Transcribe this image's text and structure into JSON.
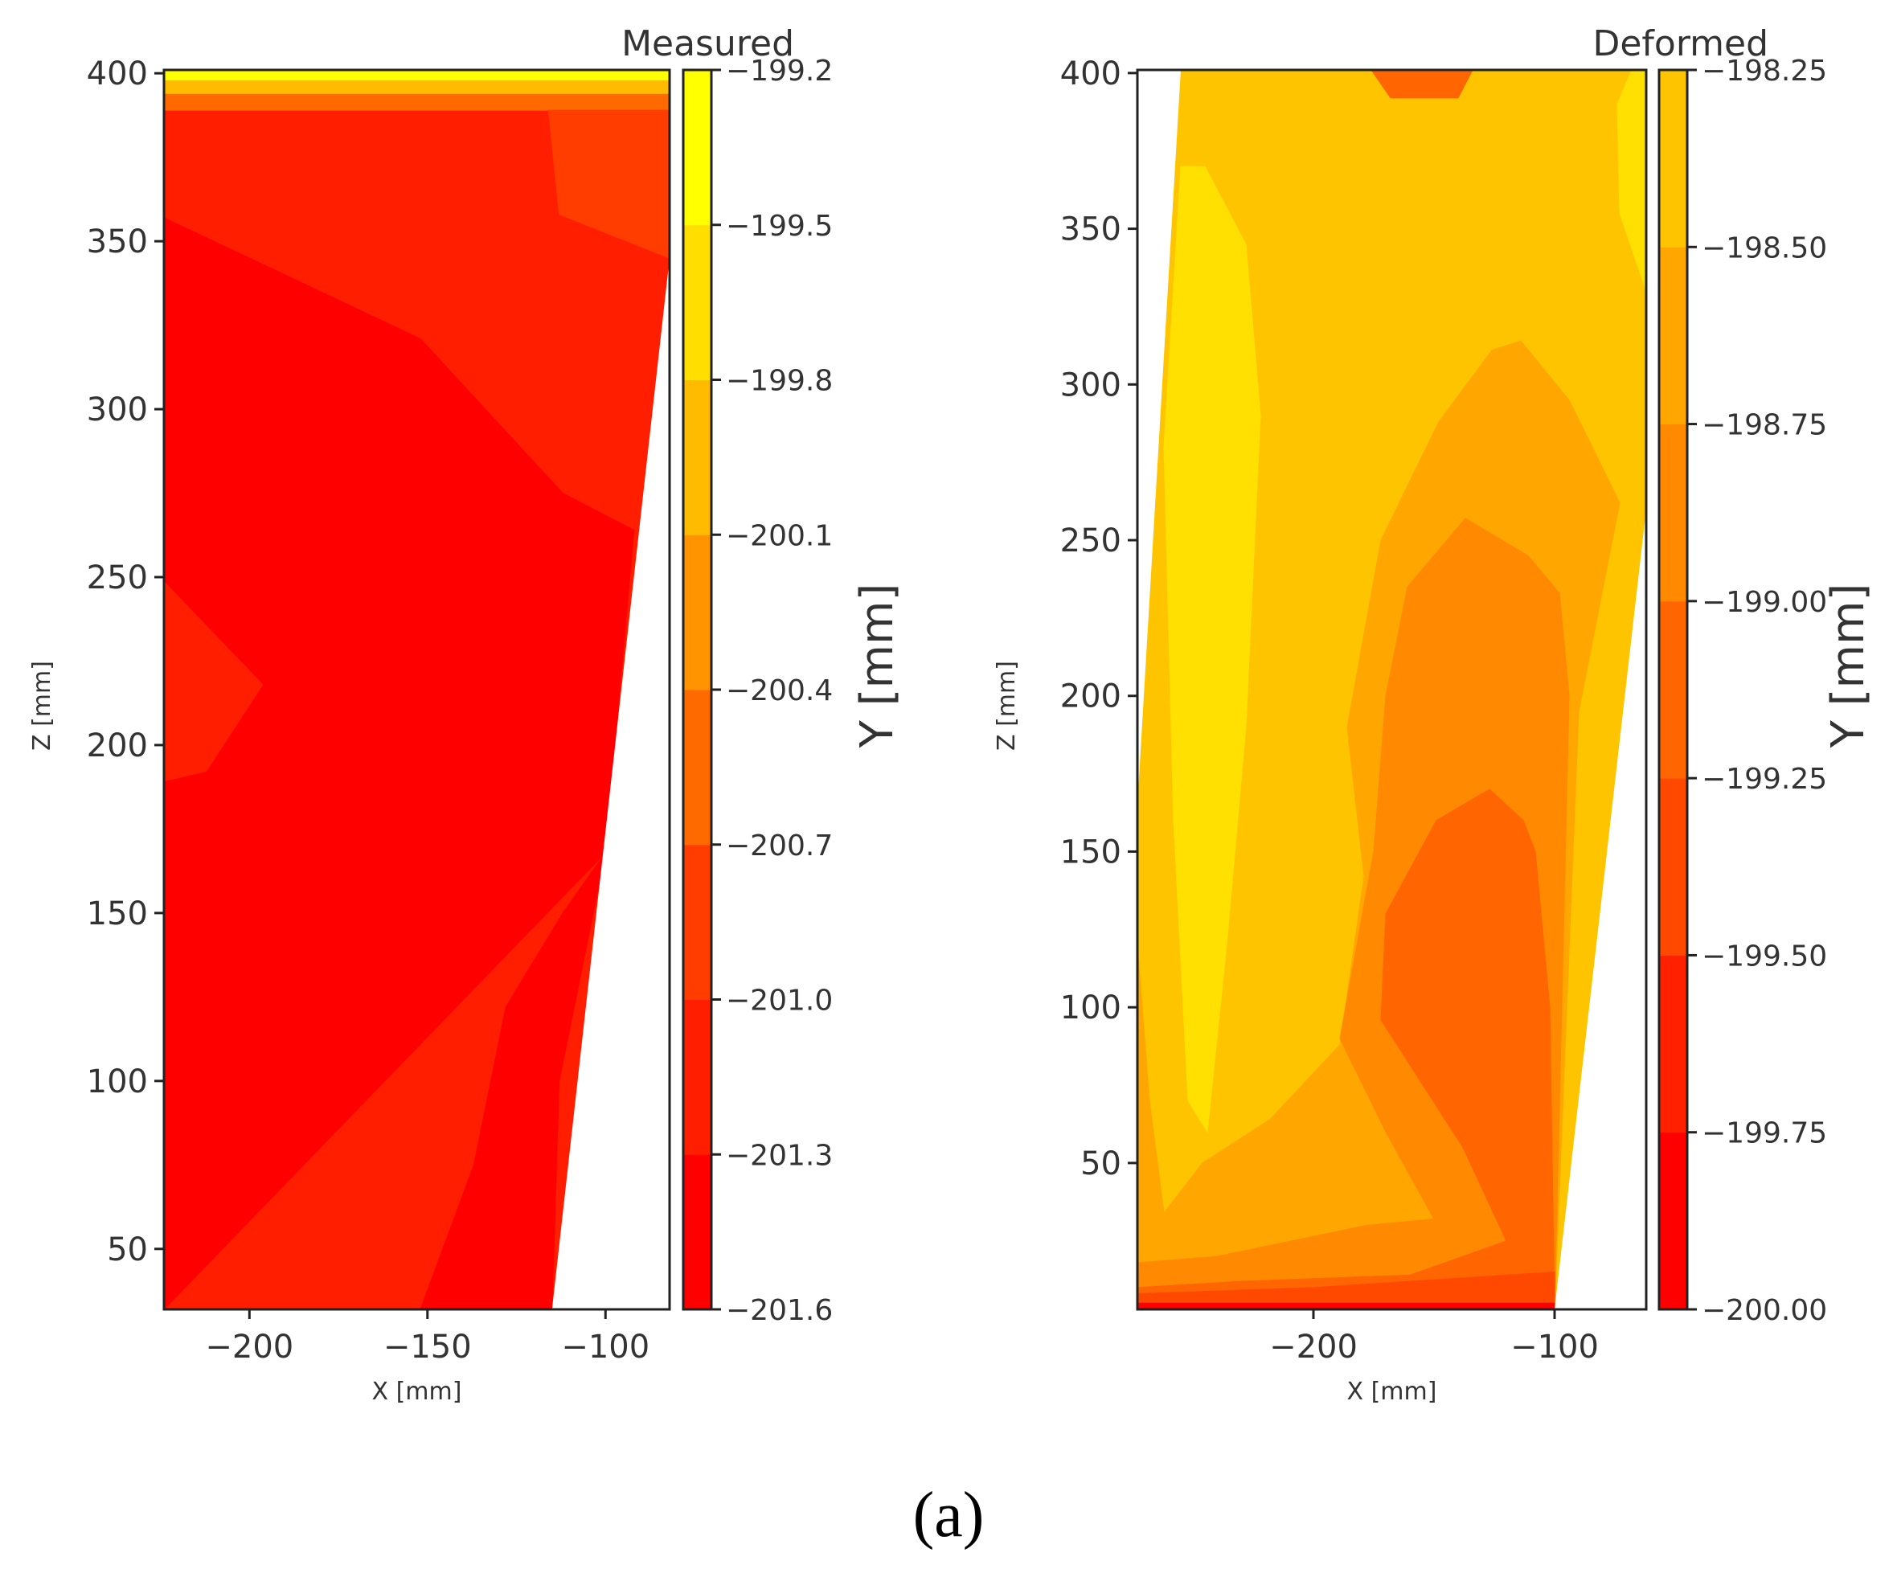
{
  "caption": "(a)",
  "palette": {
    "measured": [
      "#ff0000",
      "#ff1f00",
      "#ff3d00",
      "#ff6a00",
      "#ff9300",
      "#ffbb00",
      "#ffde00",
      "#ffff00"
    ],
    "deformed": [
      "#ff0000",
      "#ff2000",
      "#ff4800",
      "#ff6500",
      "#ff8900",
      "#ffa600",
      "#ffc400",
      "#ffe000"
    ],
    "axis": "#222222",
    "text": "#333333"
  },
  "chart_data": [
    {
      "type": "heatmap",
      "title": "Measured",
      "xlabel": "X [mm]",
      "ylabel": "Z [mm]",
      "colorbar_label": "Y [mm]",
      "xlim": [
        -224,
        -82
      ],
      "ylim": [
        32,
        401
      ],
      "xticks": [
        -200,
        -150,
        -100
      ],
      "xtick_labels": [
        "−200",
        "−150",
        "−100"
      ],
      "yticks": [
        50,
        100,
        150,
        200,
        250,
        300,
        350,
        400
      ],
      "ytick_labels": [
        "50",
        "100",
        "150",
        "200",
        "250",
        "300",
        "350",
        "400"
      ],
      "colorbar_ticks": [
        -201.6,
        -201.3,
        -201.0,
        -200.7,
        -200.4,
        -200.1,
        -199.8,
        -199.5,
        -199.2
      ],
      "colorbar_tick_labels": [
        "−201.6",
        "−201.3",
        "−201.0",
        "−200.7",
        "−200.4",
        "−200.1",
        "−199.8",
        "−199.5",
        "−199.2"
      ],
      "domain_outline": [
        [
          -224,
          32
        ],
        [
          -224,
          401
        ],
        [
          -82,
          401
        ],
        [
          -82,
          345
        ],
        [
          -115,
          32
        ]
      ],
      "regions": [
        {
          "level": 1,
          "polygon": [
            [
              -224,
              32
            ],
            [
              -224,
              389
            ],
            [
              -82,
              389
            ],
            [
              -82,
              345
            ],
            [
              -115,
              32
            ]
          ]
        },
        {
          "level": 0,
          "polygon": [
            [
              -224,
              32
            ],
            [
              -224,
              189
            ],
            [
              -212,
              192
            ],
            [
              -196,
              218
            ],
            [
              -224,
              249
            ],
            [
              -224,
              357
            ],
            [
              -152,
              321
            ],
            [
              -112,
              275
            ],
            [
              -92,
              264
            ],
            [
              -100,
              168
            ],
            [
              -113,
              100
            ],
            [
              -115,
              32
            ],
            [
              -134,
              32
            ],
            [
              -152,
              32
            ],
            [
              -137,
              75
            ],
            [
              -128,
              122
            ],
            [
              -112,
              150
            ],
            [
              -100,
              168
            ]
          ]
        },
        {
          "level": 3,
          "polygon": [
            [
              -224,
              389
            ],
            [
              -224,
              401
            ],
            [
              -82,
              401
            ],
            [
              -82,
              389
            ]
          ]
        },
        {
          "level": 5,
          "polygon": [
            [
              -224,
              394
            ],
            [
              -224,
              401
            ],
            [
              -82,
              401
            ],
            [
              -82,
              394
            ]
          ]
        },
        {
          "level": 7,
          "polygon": [
            [
              -224,
              398
            ],
            [
              -224,
              401
            ],
            [
              -82,
              401
            ],
            [
              -82,
              398
            ]
          ]
        },
        {
          "level": 2,
          "polygon": [
            [
              -116,
              389
            ],
            [
              -82,
              389
            ],
            [
              -82,
              345
            ],
            [
              -113,
              358
            ]
          ]
        }
      ]
    },
    {
      "type": "heatmap",
      "title": "Deformed",
      "xlabel": "X [mm]",
      "ylabel": "Z [mm]",
      "colorbar_label": "Y [mm]",
      "xlim": [
        -273,
        -62
      ],
      "ylim": [
        3,
        401
      ],
      "xticks": [
        -200,
        -100
      ],
      "xtick_labels": [
        "−200",
        "−100"
      ],
      "yticks": [
        50,
        100,
        150,
        200,
        250,
        300,
        350,
        400
      ],
      "ytick_labels": [
        "50",
        "100",
        "150",
        "200",
        "250",
        "300",
        "350",
        "400"
      ],
      "colorbar_ticks": [
        -200.0,
        -199.75,
        -199.5,
        -199.25,
        -199.0,
        -198.75,
        -198.5,
        -198.25
      ],
      "colorbar_tick_labels": [
        "−200.00",
        "−199.75",
        "−199.50",
        "−199.25",
        "−199.00",
        "−198.75",
        "−198.50",
        "−198.25"
      ],
      "domain_outline": [
        [
          -273,
          3
        ],
        [
          -273,
          165
        ],
        [
          -255,
          401
        ],
        [
          -62,
          401
        ],
        [
          -62,
          260
        ],
        [
          -100,
          3
        ]
      ],
      "regions": [
        {
          "level": 6,
          "polygon": [
            [
              -273,
              3
            ],
            [
              -273,
              165
            ],
            [
              -255,
              401
            ],
            [
              -62,
              401
            ],
            [
              -62,
              260
            ],
            [
              -100,
              3
            ]
          ]
        },
        {
          "level": 7,
          "polygon": [
            [
              -262,
              280
            ],
            [
              -255,
              370
            ],
            [
              -245,
              370
            ],
            [
              -228,
              345
            ],
            [
              -222,
              290
            ],
            [
              -228,
              190
            ],
            [
              -236,
              120
            ],
            [
              -244,
              60
            ],
            [
              -252,
              70
            ],
            [
              -258,
              160
            ]
          ]
        },
        {
          "level": 7,
          "polygon": [
            [
              -68,
              401
            ],
            [
              -62,
              401
            ],
            [
              -62,
              330
            ],
            [
              -73,
              355
            ],
            [
              -74,
              390
            ]
          ]
        },
        {
          "level": 5,
          "polygon": [
            [
              -273,
              3
            ],
            [
              -273,
              120
            ],
            [
              -268,
              70
            ],
            [
              -262,
              34
            ],
            [
              -246,
              50
            ],
            [
              -218,
              64
            ],
            [
              -189,
              88
            ],
            [
              -179,
              142
            ],
            [
              -186,
              190
            ],
            [
              -172,
              250
            ],
            [
              -148,
              288
            ],
            [
              -126,
              311
            ],
            [
              -114,
              314
            ],
            [
              -94,
              295
            ],
            [
              -73,
              262
            ],
            [
              -90,
              195
            ],
            [
              -100,
              3
            ]
          ]
        },
        {
          "level": 4,
          "polygon": [
            [
              -273,
              3
            ],
            [
              -273,
              18
            ],
            [
              -240,
              20
            ],
            [
              -178,
              30
            ],
            [
              -150,
              32
            ],
            [
              -170,
              60
            ],
            [
              -189,
              90
            ],
            [
              -175,
              150
            ],
            [
              -170,
              200
            ],
            [
              -161,
              235
            ],
            [
              -137,
              257
            ],
            [
              -111,
              245
            ],
            [
              -98,
              233
            ],
            [
              -94,
              200
            ],
            [
              -100,
              3
            ]
          ]
        },
        {
          "level": 3,
          "polygon": [
            [
              -273,
              3
            ],
            [
              -273,
              10
            ],
            [
              -230,
              12
            ],
            [
              -160,
              14
            ],
            [
              -120,
              25
            ],
            [
              -138,
              55
            ],
            [
              -172,
              96
            ],
            [
              -170,
              130
            ],
            [
              -149,
              160
            ],
            [
              -127,
              170
            ],
            [
              -113,
              160
            ],
            [
              -108,
              150
            ],
            [
              -102,
              100
            ],
            [
              -100,
              3
            ]
          ]
        },
        {
          "level": 2,
          "polygon": [
            [
              -273,
              3
            ],
            [
              -273,
              8
            ],
            [
              -200,
              10
            ],
            [
              -100,
              15
            ],
            [
              -100,
              3
            ]
          ]
        },
        {
          "level": 0,
          "polygon": [
            [
              -273,
              3
            ],
            [
              -273,
              5
            ],
            [
              -100,
              5
            ],
            [
              -100,
              3
            ]
          ]
        },
        {
          "level": 3,
          "polygon": [
            [
              -176,
              401
            ],
            [
              -134,
              401
            ],
            [
              -140,
              392
            ],
            [
              -168,
              392
            ]
          ]
        }
      ]
    }
  ]
}
